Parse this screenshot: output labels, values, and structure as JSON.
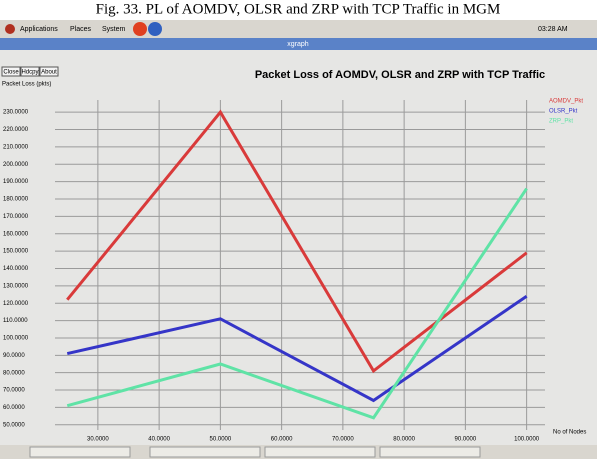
{
  "caption": "Fig. 33. PL of AOMDV, OLSR and ZRP with TCP Traffic in MGM",
  "top_panel": {
    "menus": [
      "Applications",
      "Places",
      "System"
    ],
    "clock": "03:28 AM"
  },
  "window": {
    "title": "xgraph",
    "buttons": [
      "Close",
      "Hdcpy",
      "About"
    ]
  },
  "chart_data": {
    "type": "line",
    "title": "Packet Loss of AOMDV, OLSR and ZRP with TCP Traffic",
    "y_label": "Packet Loss (pkts)",
    "x_label": "No of Nodes",
    "x": [
      25,
      50,
      75,
      100
    ],
    "series": [
      {
        "name": "AOMDV_Pkt",
        "color": "#d93a3a",
        "values": [
          122,
          230,
          81,
          149
        ]
      },
      {
        "name": "OLSR_Pkt",
        "color": "#3535c8",
        "values": [
          91,
          111,
          64,
          124
        ]
      },
      {
        "name": "ZRP_Pkt",
        "color": "#5fe3a6",
        "values": [
          61,
          85,
          54,
          186
        ]
      }
    ],
    "xlim": [
      23,
      103
    ],
    "ylim": [
      47,
      237
    ],
    "xticks": [
      {
        "value": 30,
        "label": "30.0000"
      },
      {
        "value": 40,
        "label": "40.0000"
      },
      {
        "value": 50,
        "label": "50.0000"
      },
      {
        "value": 60,
        "label": "60.0000"
      },
      {
        "value": 70,
        "label": "70.0000"
      },
      {
        "value": 80,
        "label": "80.0000"
      },
      {
        "value": 90,
        "label": "90.0000"
      },
      {
        "value": 100,
        "label": "100.0000"
      }
    ],
    "yticks": [
      {
        "value": 50,
        "label": "50.0000"
      },
      {
        "value": 60,
        "label": "60.0000"
      },
      {
        "value": 70,
        "label": "70.0000"
      },
      {
        "value": 80,
        "label": "80.0000"
      },
      {
        "value": 90,
        "label": "90.0000"
      },
      {
        "value": 100,
        "label": "100.0000"
      },
      {
        "value": 110,
        "label": "110.0000"
      },
      {
        "value": 120,
        "label": "120.0000"
      },
      {
        "value": 130,
        "label": "130.0000"
      },
      {
        "value": 140,
        "label": "140.0000"
      },
      {
        "value": 150,
        "label": "150.0000"
      },
      {
        "value": 160,
        "label": "160.0000"
      },
      {
        "value": 170,
        "label": "170.0000"
      },
      {
        "value": 180,
        "label": "180.0000"
      },
      {
        "value": 190,
        "label": "190.0000"
      },
      {
        "value": 200,
        "label": "200.0000"
      },
      {
        "value": 210,
        "label": "210.0000"
      },
      {
        "value": 220,
        "label": "220.0000"
      },
      {
        "value": 230,
        "label": "230.0000"
      }
    ],
    "grid": true
  }
}
